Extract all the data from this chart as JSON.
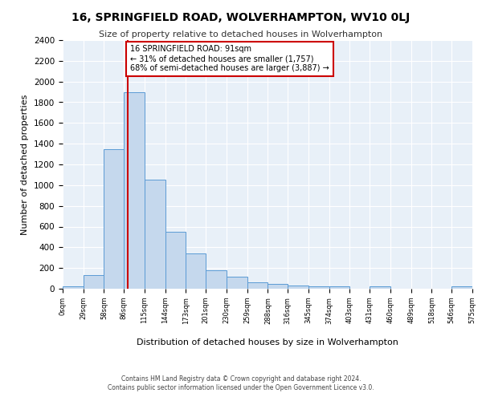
{
  "title": "16, SPRINGFIELD ROAD, WOLVERHAMPTON, WV10 0LJ",
  "subtitle": "Size of property relative to detached houses in Wolverhampton",
  "xlabel": "Distribution of detached houses by size in Wolverhampton",
  "ylabel": "Number of detached properties",
  "bar_color": "#c5d8ed",
  "bar_edge_color": "#5b9bd5",
  "background_color": "#e8f0f8",
  "grid_color": "#ffffff",
  "vline_x": 91,
  "vline_color": "#cc0000",
  "annotation_text": "16 SPRINGFIELD ROAD: 91sqm\n← 31% of detached houses are smaller (1,757)\n68% of semi-detached houses are larger (3,887) →",
  "annotation_box_color": "#cc0000",
  "bin_edges": [
    0,
    29,
    58,
    86,
    115,
    144,
    173,
    201,
    230,
    259,
    288,
    316,
    345,
    374,
    403,
    431,
    460,
    489,
    518,
    546,
    575
  ],
  "bar_heights": [
    20,
    130,
    1350,
    1900,
    1050,
    550,
    340,
    175,
    115,
    65,
    45,
    30,
    25,
    20,
    0,
    20,
    0,
    0,
    0,
    20
  ],
  "ylim": [
    0,
    2400
  ],
  "yticks": [
    0,
    200,
    400,
    600,
    800,
    1000,
    1200,
    1400,
    1600,
    1800,
    2000,
    2200,
    2400
  ],
  "footer_line1": "Contains HM Land Registry data © Crown copyright and database right 2024.",
  "footer_line2": "Contains public sector information licensed under the Open Government Licence v3.0."
}
